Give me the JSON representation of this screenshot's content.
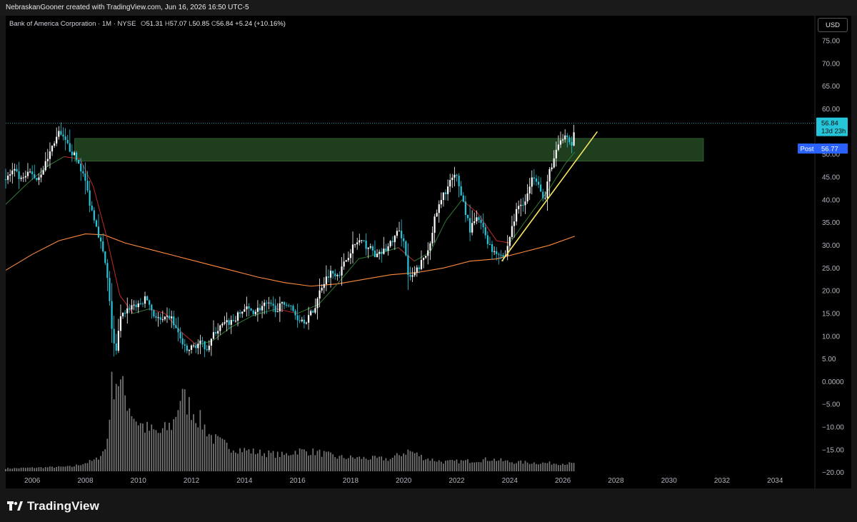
{
  "credit": "NebraskanGooner created with TradingView.com, Jun 16, 2026 16:50 UTC-5",
  "legend": {
    "symbol": "Bank of America Corporation · 1M · NYSE",
    "open_label": "O",
    "open": "51.31",
    "high_label": "H",
    "high": "57.07",
    "low_label": "L",
    "low": "50.85",
    "close_label": "C",
    "close": "56.84",
    "change": "+5.24 (+10.16%)"
  },
  "currency_button": "USD",
  "price_badge": {
    "price": "56.84",
    "countdown": "13d 23h"
  },
  "post_badge": {
    "label": "Post",
    "price": "56.77"
  },
  "brand": "TradingView",
  "colors": {
    "up": "#ffffff",
    "down": "#26c6da",
    "zone": "#2e5f2e",
    "trendline": "#f5e663",
    "ma_long": "#ff8a3d",
    "ma_short_up": "#2e7d32",
    "ma_short_down": "#c62828",
    "badge": "#26c6da",
    "post": "#2962ff"
  },
  "chart_data": {
    "type": "candlestick",
    "interval": "1M",
    "x_range": [
      2005.0,
      2035.5
    ],
    "y_range": [
      -23.5,
      80.5
    ],
    "y_ticks": [
      "75.00",
      "70.00",
      "65.00",
      "60.00",
      "55.00",
      "50.00",
      "45.00",
      "40.00",
      "35.00",
      "30.00",
      "25.00",
      "20.00",
      "15.00",
      "10.00",
      "5.00",
      "0.0000",
      "−5.00",
      "−10.00",
      "−15.00",
      "−20.00"
    ],
    "x_ticks": [
      "2006",
      "2008",
      "2010",
      "2012",
      "2014",
      "2016",
      "2018",
      "2020",
      "2022",
      "2024",
      "2026",
      "2028",
      "2030",
      "2032",
      "2034"
    ],
    "price_path": [
      [
        2005.0,
        44.5
      ],
      [
        2005.3,
        46.5
      ],
      [
        2005.6,
        44.0
      ],
      [
        2005.9,
        46.0
      ],
      [
        2006.2,
        44.5
      ],
      [
        2006.5,
        48.0
      ],
      [
        2006.8,
        52.5
      ],
      [
        2007.0,
        54.5
      ],
      [
        2007.2,
        53.0
      ],
      [
        2007.5,
        50.5
      ],
      [
        2007.8,
        47.5
      ],
      [
        2008.0,
        44.0
      ],
      [
        2008.2,
        38.5
      ],
      [
        2008.4,
        35.0
      ],
      [
        2008.6,
        30.0
      ],
      [
        2008.8,
        24.5
      ],
      [
        2009.0,
        12.0
      ],
      [
        2009.15,
        5.5
      ],
      [
        2009.3,
        13.5
      ],
      [
        2009.5,
        15.5
      ],
      [
        2009.8,
        17.0
      ],
      [
        2010.0,
        16.5
      ],
      [
        2010.3,
        18.5
      ],
      [
        2010.6,
        14.5
      ],
      [
        2010.9,
        13.0
      ],
      [
        2011.2,
        14.5
      ],
      [
        2011.5,
        10.5
      ],
      [
        2011.8,
        6.5
      ],
      [
        2012.0,
        7.5
      ],
      [
        2012.3,
        8.5
      ],
      [
        2012.6,
        7.5
      ],
      [
        2012.9,
        11.0
      ],
      [
        2013.2,
        12.5
      ],
      [
        2013.6,
        13.5
      ],
      [
        2014.0,
        16.0
      ],
      [
        2014.4,
        15.5
      ],
      [
        2014.8,
        17.0
      ],
      [
        2015.2,
        16.0
      ],
      [
        2015.6,
        17.5
      ],
      [
        2016.0,
        14.0
      ],
      [
        2016.3,
        13.5
      ],
      [
        2016.6,
        15.5
      ],
      [
        2016.9,
        21.0
      ],
      [
        2017.2,
        24.0
      ],
      [
        2017.6,
        24.0
      ],
      [
        2018.0,
        29.0
      ],
      [
        2018.3,
        31.0
      ],
      [
        2018.7,
        29.5
      ],
      [
        2019.0,
        27.5
      ],
      [
        2019.4,
        29.5
      ],
      [
        2019.8,
        33.0
      ],
      [
        2020.0,
        31.5
      ],
      [
        2020.2,
        22.0
      ],
      [
        2020.5,
        24.5
      ],
      [
        2020.9,
        28.5
      ],
      [
        2021.2,
        36.5
      ],
      [
        2021.5,
        41.0
      ],
      [
        2021.8,
        44.5
      ],
      [
        2022.0,
        45.0
      ],
      [
        2022.2,
        40.5
      ],
      [
        2022.5,
        33.5
      ],
      [
        2022.8,
        36.0
      ],
      [
        2023.0,
        33.5
      ],
      [
        2023.3,
        29.0
      ],
      [
        2023.6,
        28.5
      ],
      [
        2023.8,
        27.0
      ],
      [
        2024.0,
        32.0
      ],
      [
        2024.3,
        38.5
      ],
      [
        2024.6,
        40.0
      ],
      [
        2024.9,
        45.5
      ],
      [
        2025.1,
        44.0
      ],
      [
        2025.3,
        39.0
      ],
      [
        2025.5,
        46.5
      ],
      [
        2025.7,
        49.5
      ],
      [
        2025.9,
        53.0
      ],
      [
        2026.1,
        54.0
      ],
      [
        2026.3,
        51.3
      ],
      [
        2026.45,
        56.84
      ]
    ],
    "ma_long_path": [
      [
        2005.0,
        24.5
      ],
      [
        2006.0,
        28.0
      ],
      [
        2007.0,
        31.0
      ],
      [
        2008.0,
        32.5
      ],
      [
        2008.7,
        32.3
      ],
      [
        2009.5,
        30.5
      ],
      [
        2010.5,
        29.0
      ],
      [
        2011.5,
        27.5
      ],
      [
        2012.5,
        26.0
      ],
      [
        2013.5,
        24.5
      ],
      [
        2014.5,
        23.0
      ],
      [
        2015.5,
        21.8
      ],
      [
        2016.5,
        21.0
      ],
      [
        2017.5,
        21.5
      ],
      [
        2018.5,
        22.5
      ],
      [
        2019.5,
        23.5
      ],
      [
        2020.5,
        24.0
      ],
      [
        2021.5,
        25.0
      ],
      [
        2022.5,
        26.5
      ],
      [
        2023.5,
        27.0
      ],
      [
        2024.5,
        28.5
      ],
      [
        2025.5,
        30.0
      ],
      [
        2026.45,
        32.0
      ]
    ],
    "ma_short_path": [
      [
        2005.0,
        39.0
      ],
      [
        2005.8,
        43.5
      ],
      [
        2006.6,
        47.5
      ],
      [
        2007.2,
        49.5
      ],
      [
        2007.8,
        49.0
      ],
      [
        2008.3,
        43.0
      ],
      [
        2008.8,
        32.0
      ],
      [
        2009.3,
        19.0
      ],
      [
        2009.8,
        15.0
      ],
      [
        2010.4,
        16.0
      ],
      [
        2011.0,
        15.0
      ],
      [
        2011.6,
        11.0
      ],
      [
        2012.2,
        8.0
      ],
      [
        2012.8,
        9.0
      ],
      [
        2013.5,
        12.0
      ],
      [
        2014.3,
        14.5
      ],
      [
        2015.2,
        16.0
      ],
      [
        2016.0,
        15.0
      ],
      [
        2016.8,
        17.0
      ],
      [
        2017.5,
        21.5
      ],
      [
        2018.3,
        27.0
      ],
      [
        2019.0,
        28.0
      ],
      [
        2019.8,
        29.5
      ],
      [
        2020.4,
        26.5
      ],
      [
        2021.0,
        28.5
      ],
      [
        2021.6,
        35.5
      ],
      [
        2022.2,
        40.0
      ],
      [
        2022.8,
        37.0
      ],
      [
        2023.5,
        31.0
      ],
      [
        2024.0,
        30.5
      ],
      [
        2024.8,
        37.0
      ],
      [
        2025.5,
        42.5
      ],
      [
        2026.1,
        48.0
      ],
      [
        2026.45,
        50.5
      ]
    ],
    "resistance_zone": {
      "x_start": 2007.6,
      "x_end": 2031.3,
      "y_low": 48.5,
      "y_high": 53.5
    },
    "trendline": {
      "from": [
        2023.7,
        26.5
      ],
      "to": [
        2027.3,
        55.0
      ]
    },
    "volume_profile": [
      [
        2005.0,
        0.03
      ],
      [
        2007.5,
        0.05
      ],
      [
        2008.4,
        0.12
      ],
      [
        2008.8,
        0.25
      ],
      [
        2009.0,
        0.9
      ],
      [
        2009.2,
        1.0
      ],
      [
        2009.5,
        0.8
      ],
      [
        2009.9,
        0.55
      ],
      [
        2010.3,
        0.45
      ],
      [
        2010.8,
        0.4
      ],
      [
        2011.3,
        0.5
      ],
      [
        2011.6,
        0.8
      ],
      [
        2011.9,
        0.7
      ],
      [
        2012.3,
        0.55
      ],
      [
        2012.8,
        0.35
      ],
      [
        2013.5,
        0.25
      ],
      [
        2014.5,
        0.2
      ],
      [
        2015.5,
        0.17
      ],
      [
        2016.0,
        0.22
      ],
      [
        2016.8,
        0.2
      ],
      [
        2017.5,
        0.15
      ],
      [
        2018.5,
        0.14
      ],
      [
        2019.5,
        0.13
      ],
      [
        2020.2,
        0.22
      ],
      [
        2020.8,
        0.14
      ],
      [
        2021.5,
        0.1
      ],
      [
        2022.5,
        0.11
      ],
      [
        2023.3,
        0.13
      ],
      [
        2024.0,
        0.1
      ],
      [
        2025.0,
        0.09
      ],
      [
        2026.45,
        0.08
      ]
    ]
  }
}
